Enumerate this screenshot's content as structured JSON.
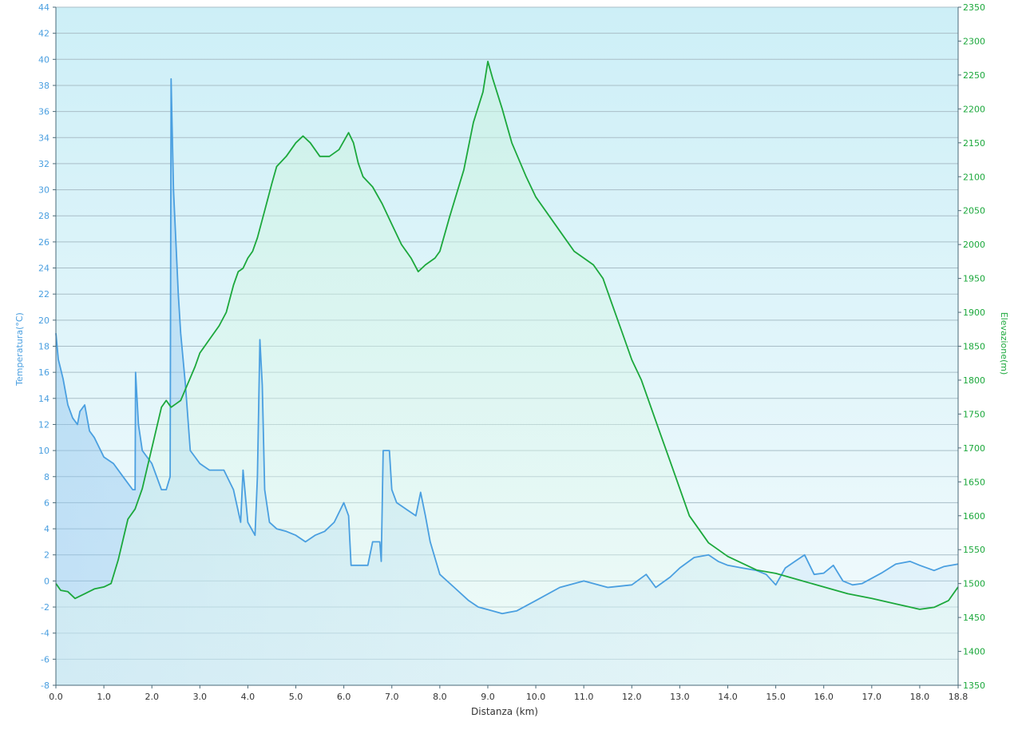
{
  "colors": {
    "temperature": "#4a9fe0",
    "elevation": "#1ca83c",
    "grid": "#a9bec7",
    "bg_top": "#cdeff7",
    "bg_bottom": "#f4fbfd"
  },
  "chart_data": {
    "type": "line",
    "xlabel": "Distanza  (km)",
    "ylabel_left": "Temperatura(°C)",
    "ylabel_right": "Elevazione(m)",
    "xlim": [
      0,
      18.8
    ],
    "ylim_left": [
      -8,
      44
    ],
    "ylim_right": [
      1350,
      2350
    ],
    "x_ticks": [
      "0.0",
      "1.0",
      "2.0",
      "3.0",
      "4.0",
      "5.0",
      "6.0",
      "7.0",
      "8.0",
      "9.0",
      "10.0",
      "11.0",
      "12.0",
      "13.0",
      "14.0",
      "15.0",
      "16.0",
      "17.0",
      "18.0",
      "18.8"
    ],
    "y_ticks_left": [
      "44",
      "42",
      "40",
      "38",
      "36",
      "34",
      "32",
      "30",
      "28",
      "26",
      "24",
      "22",
      "20",
      "18",
      "16",
      "14",
      "12",
      "10",
      "8",
      "6",
      "4",
      "2",
      "0",
      "-2",
      "-4",
      "-6",
      "-8"
    ],
    "y_ticks_right": [
      "2350",
      "2300",
      "2250",
      "2200",
      "2150",
      "2100",
      "2050",
      "2000",
      "1950",
      "1900",
      "1850",
      "1800",
      "1750",
      "1700",
      "1650",
      "1600",
      "1550",
      "1500",
      "1450",
      "1400",
      "1350"
    ],
    "grid": true,
    "series": [
      {
        "name": "Temperatura",
        "axis": "left",
        "x": [
          0,
          0.05,
          0.15,
          0.25,
          0.35,
          0.45,
          0.5,
          0.6,
          0.7,
          0.8,
          1.0,
          1.2,
          1.4,
          1.6,
          1.65,
          1.66,
          1.72,
          1.8,
          2.0,
          2.2,
          2.3,
          2.38,
          2.4,
          2.42,
          2.45,
          2.5,
          2.55,
          2.6,
          2.7,
          2.8,
          3.0,
          3.2,
          3.5,
          3.7,
          3.85,
          3.9,
          4.0,
          4.15,
          4.2,
          4.25,
          4.3,
          4.35,
          4.45,
          4.6,
          4.8,
          5.0,
          5.2,
          5.4,
          5.6,
          5.8,
          6.0,
          6.1,
          6.15,
          6.25,
          6.5,
          6.6,
          6.75,
          6.78,
          6.82,
          6.95,
          7.0,
          7.1,
          7.3,
          7.5,
          7.6,
          7.7,
          7.8,
          8.0,
          8.3,
          8.6,
          8.8,
          9.0,
          9.3,
          9.6,
          10.0,
          10.5,
          11.0,
          11.5,
          12.0,
          12.3,
          12.5,
          12.8,
          13.0,
          13.3,
          13.6,
          13.8,
          14.0,
          14.3,
          14.6,
          14.8,
          15.0,
          15.2,
          15.4,
          15.6,
          15.8,
          16.0,
          16.2,
          16.4,
          16.6,
          16.8,
          17.0,
          17.2,
          17.5,
          17.8,
          18.0,
          18.3,
          18.5,
          18.8
        ],
        "y": [
          19,
          17,
          15.5,
          13.5,
          12.5,
          12,
          13,
          13.5,
          11.5,
          11,
          9.5,
          9,
          8,
          7,
          7,
          16,
          12,
          10,
          9,
          7,
          7,
          8,
          38.5,
          35,
          30,
          26,
          22,
          19,
          15,
          10,
          9,
          8.5,
          8.5,
          7,
          4.5,
          8.5,
          4.5,
          3.5,
          8,
          18.5,
          15,
          7,
          4.5,
          4,
          3.8,
          3.5,
          3,
          3.5,
          3.8,
          4.5,
          6,
          5,
          1.2,
          1.2,
          1.2,
          3,
          3,
          1.5,
          10,
          10,
          7,
          6,
          5.5,
          5,
          6.8,
          5,
          3,
          0.5,
          -0.5,
          -1.5,
          -2,
          -2.2,
          -2.5,
          -2.3,
          -1.5,
          -0.5,
          0,
          -0.5,
          -0.3,
          0.5,
          -0.5,
          0.3,
          1,
          1.8,
          2,
          1.5,
          1.2,
          1,
          0.8,
          0.5,
          -0.3,
          1,
          1.5,
          2,
          0.5,
          0.6,
          1.2,
          0,
          -0.3,
          -0.2,
          0.2,
          0.6,
          1.3,
          1.5,
          1.2,
          0.8,
          1.1,
          1.3
        ]
      },
      {
        "name": "Elevazione",
        "axis": "right",
        "x": [
          0,
          0.1,
          0.25,
          0.4,
          0.6,
          0.8,
          1.0,
          1.15,
          1.3,
          1.5,
          1.65,
          1.8,
          1.9,
          2.0,
          2.1,
          2.2,
          2.3,
          2.4,
          2.5,
          2.6,
          2.75,
          2.9,
          3.0,
          3.2,
          3.4,
          3.55,
          3.7,
          3.8,
          3.9,
          4.0,
          4.1,
          4.2,
          4.35,
          4.5,
          4.6,
          4.8,
          5.0,
          5.15,
          5.3,
          5.5,
          5.7,
          5.9,
          6.1,
          6.2,
          6.3,
          6.4,
          6.6,
          6.8,
          7.0,
          7.2,
          7.4,
          7.55,
          7.7,
          7.8,
          7.9,
          8.0,
          8.2,
          8.5,
          8.7,
          8.9,
          9.0,
          9.1,
          9.3,
          9.5,
          9.8,
          10.0,
          10.2,
          10.4,
          10.6,
          10.8,
          11.0,
          11.2,
          11.4,
          11.6,
          11.8,
          12.0,
          12.2,
          12.4,
          12.6,
          12.8,
          13.0,
          13.2,
          13.4,
          13.6,
          13.8,
          14.0,
          14.3,
          14.6,
          15.0,
          15.5,
          16.0,
          16.5,
          17.0,
          17.5,
          18.0,
          18.3,
          18.6,
          18.8
        ],
        "y": [
          1500,
          1490,
          1488,
          1478,
          1485,
          1492,
          1495,
          1500,
          1535,
          1595,
          1610,
          1640,
          1670,
          1700,
          1730,
          1760,
          1770,
          1760,
          1765,
          1770,
          1795,
          1820,
          1840,
          1860,
          1880,
          1900,
          1940,
          1960,
          1965,
          1980,
          1990,
          2010,
          2050,
          2090,
          2115,
          2130,
          2150,
          2160,
          2150,
          2130,
          2130,
          2140,
          2165,
          2150,
          2120,
          2100,
          2085,
          2060,
          2030,
          2000,
          1980,
          1960,
          1970,
          1975,
          1980,
          1990,
          2040,
          2110,
          2180,
          2225,
          2270,
          2245,
          2200,
          2150,
          2100,
          2070,
          2050,
          2030,
          2010,
          1990,
          1980,
          1970,
          1950,
          1910,
          1870,
          1830,
          1800,
          1760,
          1720,
          1680,
          1640,
          1600,
          1580,
          1560,
          1550,
          1540,
          1530,
          1520,
          1515,
          1505,
          1495,
          1485,
          1478,
          1470,
          1462,
          1465,
          1475,
          1495
        ]
      }
    ]
  }
}
